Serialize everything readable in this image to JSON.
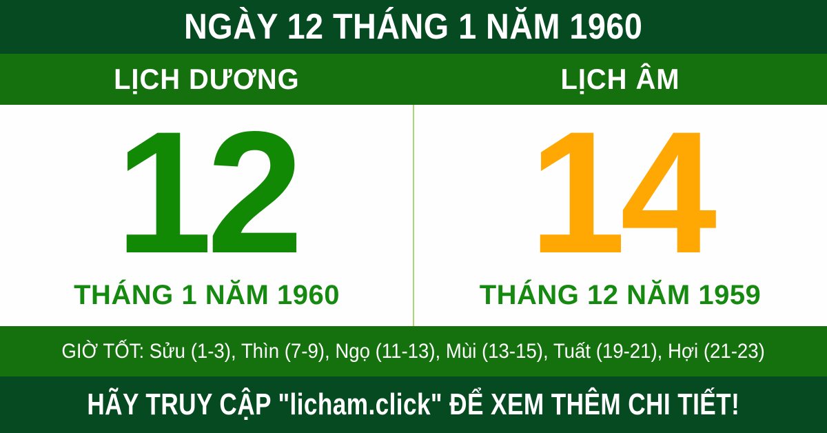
{
  "header": {
    "title": "NGÀY 12 THÁNG 1 NĂM 1960"
  },
  "calendar_columns": {
    "solar": {
      "heading": "LỊCH DƯƠNG",
      "day": "12",
      "month_year": "THÁNG 1 NĂM 1960"
    },
    "lunar": {
      "heading": "LỊCH ÂM",
      "day": "14",
      "month_year": "THÁNG 12 NĂM 1959"
    }
  },
  "good_hours": {
    "text": "GIỜ TỐT: Sửu (1-3), Thìn (7-9), Ngọ (11-13), Mùi (13-15), Tuất (19-21), Hợi (21-23)"
  },
  "footer": {
    "message": "HÃY TRUY CẬP \"licham.click\" ĐỂ XEM THÊM CHI TIẾT!",
    "website": "licham.click"
  },
  "colors": {
    "dark_green": "#064a21",
    "bar_green": "#15700e",
    "solar_day_green": "#118905",
    "month_text_green": "#168a10",
    "lunar_day_orange": "#ffa703",
    "divider_light_green": "#a8d874",
    "panel_white": "#fefefe",
    "text_white": "#ffffff"
  }
}
